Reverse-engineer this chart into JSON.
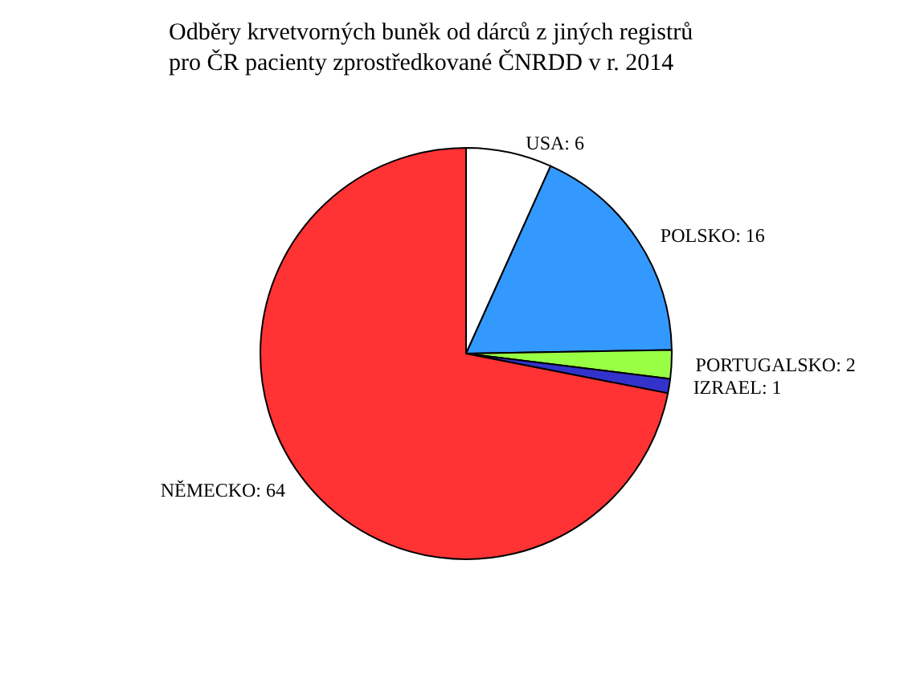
{
  "chart_data": {
    "type": "pie",
    "title": "Odběry krvetvorných buněk od dárců z jiných registrů\npro ČR pacienty zprostředkované ČNRDD v r. 2014",
    "categories": [
      "USA",
      "POLSKO",
      "PORTUGALSKO",
      "IZRAEL",
      "NĚMECKO"
    ],
    "values": [
      6,
      16,
      2,
      1,
      64
    ],
    "colors": [
      "#ffffff",
      "#3399ff",
      "#99ff44",
      "#3333cc",
      "#ff3333"
    ],
    "value_labels": [
      ": 6",
      ": 16",
      ": 2",
      ": 1",
      ": 64"
    ],
    "legend": false
  }
}
